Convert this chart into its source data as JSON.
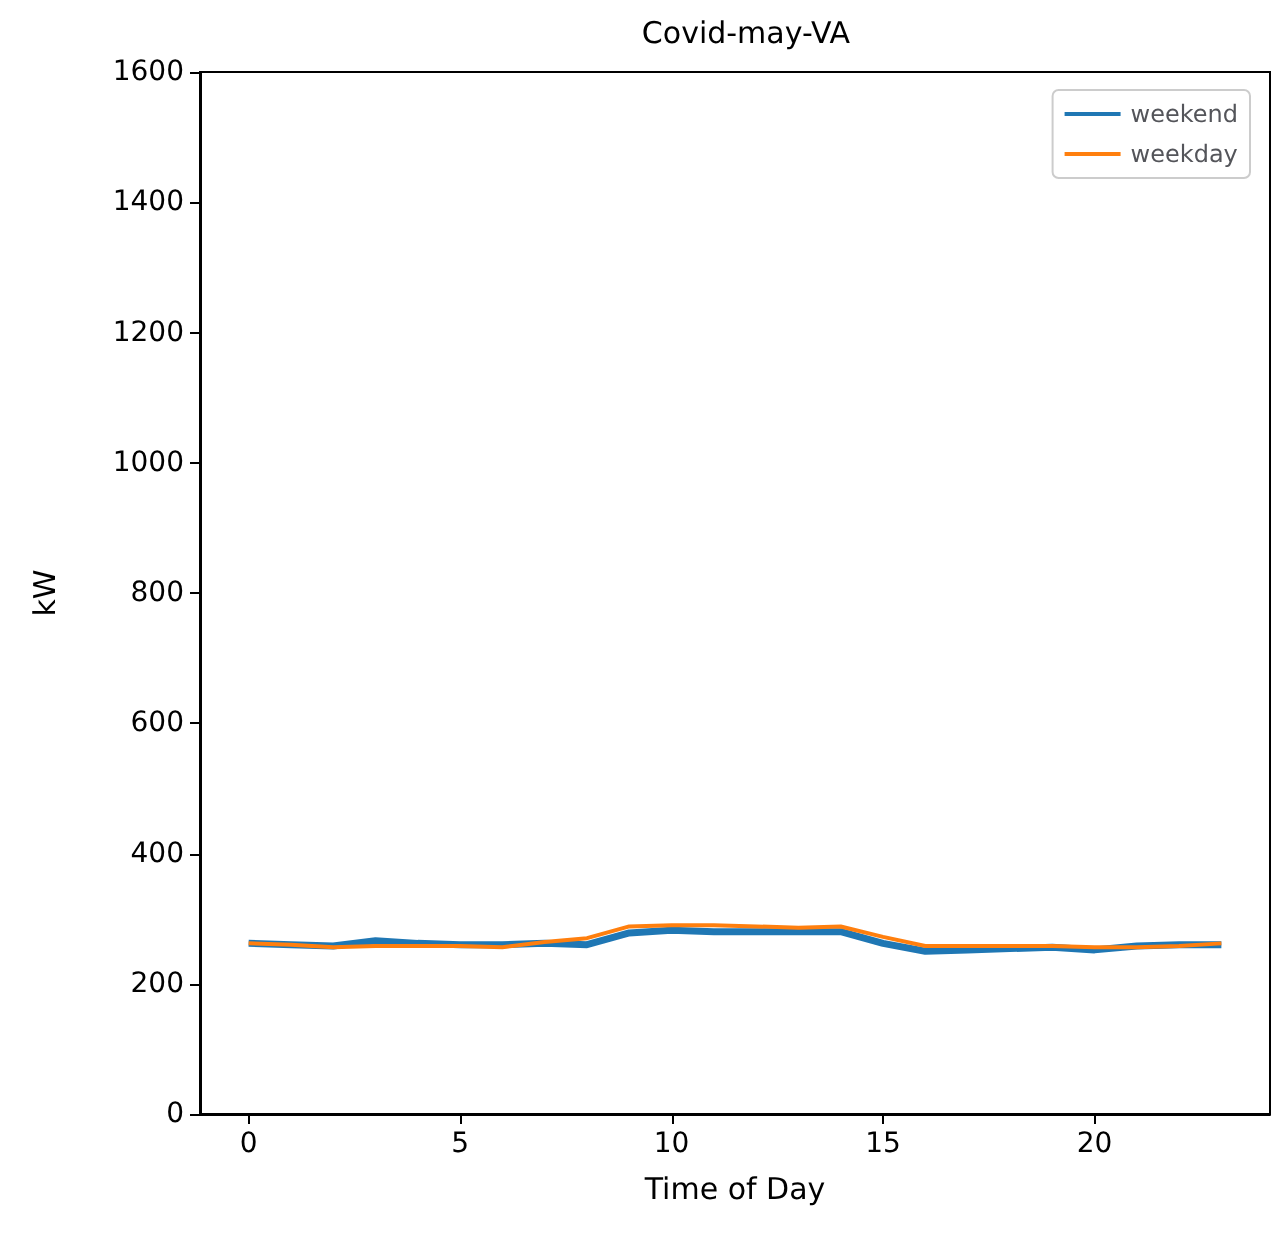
{
  "chart_data": {
    "type": "line",
    "title": "Covid-may-VA",
    "xlabel": "Time of Day",
    "ylabel": "kW",
    "x": [
      0,
      1,
      2,
      3,
      4,
      5,
      6,
      7,
      8,
      9,
      10,
      11,
      12,
      13,
      14,
      15,
      16,
      17,
      18,
      19,
      20,
      21,
      22,
      23
    ],
    "series": [
      {
        "name": "weekend",
        "color": "#1f77b4",
        "values": [
          262,
          260,
          258,
          266,
          262,
          260,
          260,
          262,
          260,
          278,
          282,
          280,
          280,
          280,
          280,
          262,
          250,
          252,
          254,
          256,
          252,
          258,
          260,
          260
        ]
      },
      {
        "name": "weekday",
        "color": "#ff7f0e",
        "values": [
          262,
          260,
          256,
          258,
          258,
          258,
          256,
          264,
          270,
          288,
          290,
          290,
          288,
          286,
          288,
          272,
          258,
          258,
          258,
          258,
          256,
          256,
          258,
          262
        ]
      }
    ],
    "xlim": [
      -1.15,
      24.15
    ],
    "xticks": [
      0,
      5,
      10,
      15,
      20
    ],
    "ylim": [
      0,
      1600
    ],
    "yticks": [
      0,
      200,
      400,
      600,
      800,
      1000,
      1200,
      1400,
      1600
    ],
    "grid": false,
    "legend": "top right"
  }
}
